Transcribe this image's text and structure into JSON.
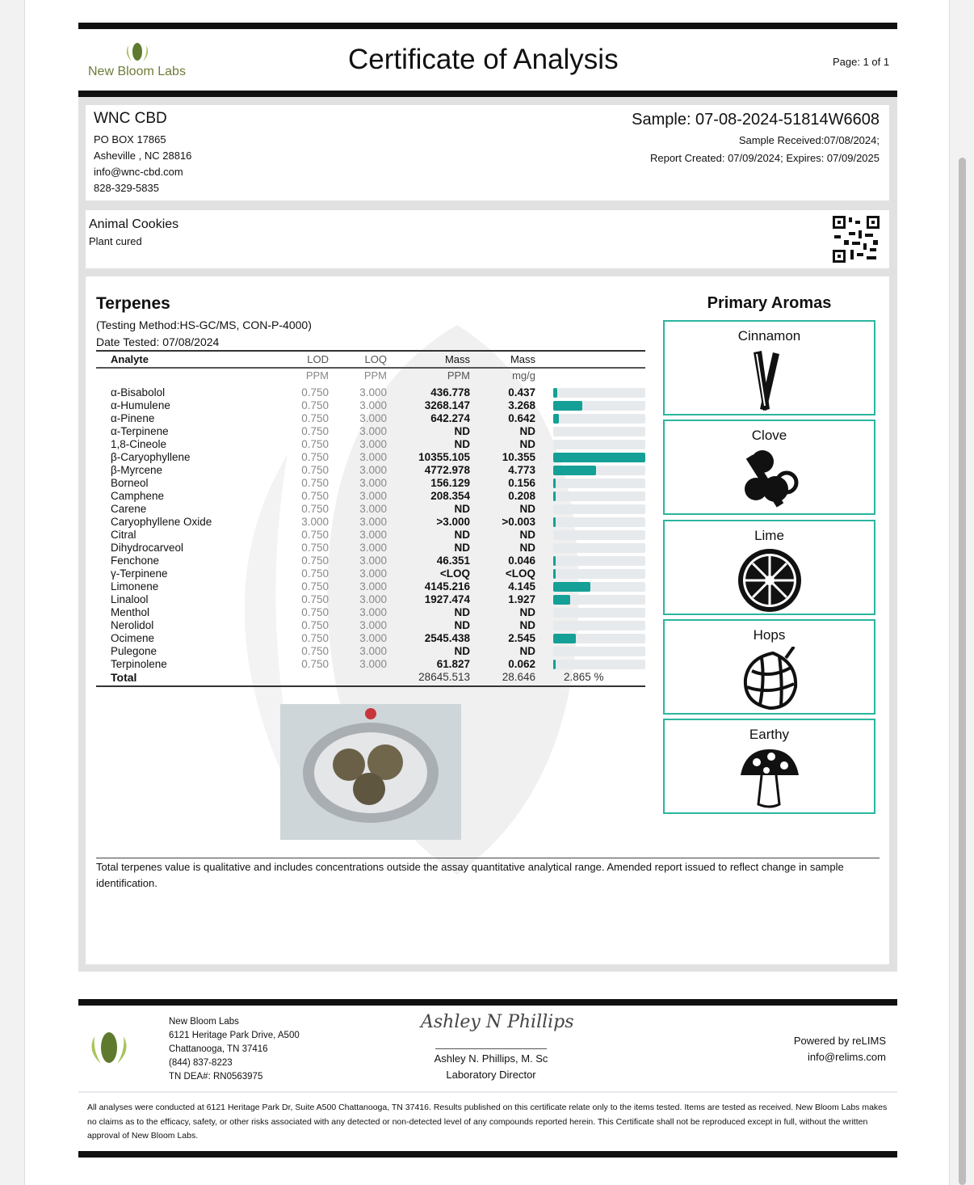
{
  "header": {
    "lab_name": "New Bloom Labs",
    "title": "Certificate of Analysis",
    "page": "Page: 1 of 1"
  },
  "client": {
    "name": "WNC CBD",
    "address1": "PO BOX 17865",
    "address2": "Asheville , NC 28816",
    "email": "info@wnc-cbd.com",
    "phone": "828-329-5835"
  },
  "sample": {
    "id": "Sample: 07-08-2024-51814W6608",
    "received": "Sample Received:07/08/2024;",
    "report": "Report Created: 07/09/2024; Expires: 07/09/2025"
  },
  "product": {
    "name": "Animal Cookies",
    "type": "Plant cured"
  },
  "terpenes": {
    "title": "Terpenes",
    "method": "(Testing Method:HS-GC/MS, CON-P-4000)",
    "date_tested": "Date Tested: 07/08/2024",
    "headers": [
      "Analyte",
      "LOD",
      "LOQ",
      "Mass",
      "Mass"
    ],
    "units": [
      "",
      "PPM",
      "PPM",
      "PPM",
      "mg/g"
    ],
    "bar_max": 10.355,
    "bar_color": "#14a096",
    "rows": [
      [
        "α-Bisabolol",
        "0.750",
        "3.000",
        "436.778",
        "0.437",
        0.437
      ],
      [
        "α-Humulene",
        "0.750",
        "3.000",
        "3268.147",
        "3.268",
        3.268
      ],
      [
        "α-Pinene",
        "0.750",
        "3.000",
        "642.274",
        "0.642",
        0.642
      ],
      [
        "α-Terpinene",
        "0.750",
        "3.000",
        "ND",
        "ND",
        0
      ],
      [
        "1,8-Cineole",
        "0.750",
        "3.000",
        "ND",
        "ND",
        0
      ],
      [
        "β-Caryophyllene",
        "0.750",
        "3.000",
        "10355.105",
        "10.355",
        10.355
      ],
      [
        "β-Myrcene",
        "0.750",
        "3.000",
        "4772.978",
        "4.773",
        4.773
      ],
      [
        "Borneol",
        "0.750",
        "3.000",
        "156.129",
        "0.156",
        0.156
      ],
      [
        "Camphene",
        "0.750",
        "3.000",
        "208.354",
        "0.208",
        0.208
      ],
      [
        "Carene",
        "0.750",
        "3.000",
        "ND",
        "ND",
        0
      ],
      [
        "Caryophyllene Oxide",
        "3.000",
        "3.000",
        ">3.000",
        ">0.003",
        0.003
      ],
      [
        "Citral",
        "0.750",
        "3.000",
        "ND",
        "ND",
        0
      ],
      [
        "Dihydrocarveol",
        "0.750",
        "3.000",
        "ND",
        "ND",
        0
      ],
      [
        "Fenchone",
        "0.750",
        "3.000",
        "46.351",
        "0.046",
        0.046
      ],
      [
        "γ-Terpinene",
        "0.750",
        "3.000",
        "<LOQ",
        "<LOQ",
        0.003
      ],
      [
        "Limonene",
        "0.750",
        "3.000",
        "4145.216",
        "4.145",
        4.145
      ],
      [
        "Linalool",
        "0.750",
        "3.000",
        "1927.474",
        "1.927",
        1.927
      ],
      [
        "Menthol",
        "0.750",
        "3.000",
        "ND",
        "ND",
        0
      ],
      [
        "Nerolidol",
        "0.750",
        "3.000",
        "ND",
        "ND",
        0
      ],
      [
        "Ocimene",
        "0.750",
        "3.000",
        "2545.438",
        "2.545",
        2.545
      ],
      [
        "Pulegone",
        "0.750",
        "3.000",
        "ND",
        "ND",
        0
      ],
      [
        "Terpinolene",
        "0.750",
        "3.000",
        "61.827",
        "0.062",
        0.062
      ]
    ],
    "total": {
      "label": "Total",
      "ppm": "28645.513",
      "mg": "28.646",
      "percent": "2.865 %"
    }
  },
  "aromas": {
    "title": "Primary Aromas",
    "accent": "#2bb5a0",
    "items": [
      {
        "label": "Cinnamon",
        "icon": "cinnamon-icon"
      },
      {
        "label": "Clove",
        "icon": "clove-icon"
      },
      {
        "label": "Lime",
        "icon": "lime-icon"
      },
      {
        "label": "Hops",
        "icon": "hops-icon"
      },
      {
        "label": "Earthy",
        "icon": "mushroom-icon"
      }
    ]
  },
  "note": "Total terpenes value is qualitative and includes concentrations outside the assay quantitative analytical range. Amended report issued to reflect change in sample identification.",
  "footer": {
    "lab": [
      "New Bloom Labs",
      "6121 Heritage Park Drive, A500",
      "Chattanooga, TN 37416",
      "(844) 837-8223",
      "TN DEA#: RN0563975"
    ],
    "signature": "Ashley N Phillips",
    "signer": "Ashley N. Phillips, M. Sc",
    "signer_title": "Laboratory Director",
    "powered": "Powered by reLIMS",
    "powered_email": "info@relims.com",
    "disclaimer": "All analyses were conducted at 6121 Heritage Park Dr, Suite A500 Chattanooga, TN 37416. Results published on this certificate relate only to the items tested. Items are tested as received. New Bloom Labs makes no claims as to the efficacy, safety, or other risks associated with any detected or non-detected level of any compounds reported herein. This Certificate shall not be reproduced except in full, without the written approval of New Bloom Labs."
  }
}
